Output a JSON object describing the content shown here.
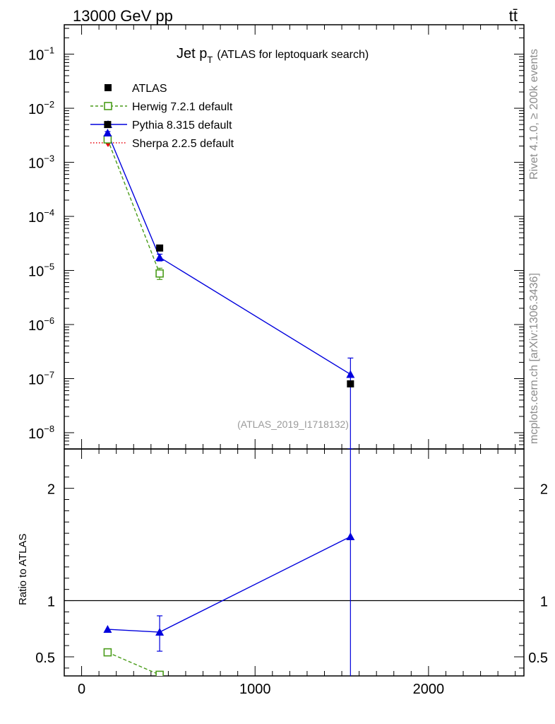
{
  "header": {
    "energy": "13000 GeV pp",
    "process": "tt̄"
  },
  "side_labels": {
    "rivet": "Rivet 4.1.0, ≥ 200k events",
    "source": "mcplots.cern.ch [arXiv:1306.3436]"
  },
  "chart_data": {
    "type": "line",
    "title": "Jet p",
    "title_sub": "T",
    "title_suffix": "(ATLAS for leptoquark search)",
    "analysis_id": "(ATLAS_2019_I1718132)",
    "xlabel": "",
    "ylabel_ratio": "Ratio to ATLAS",
    "xlim": [
      -100,
      2550
    ],
    "ylim_log": [
      5e-09,
      0.35
    ],
    "ratio_ylim": [
      0.33,
      2.35
    ],
    "x_ticks": [
      {
        "value": 0,
        "label": "0"
      },
      {
        "value": 1000,
        "label": "1000"
      },
      {
        "value": 2000,
        "label": "2000"
      }
    ],
    "y_ticks": [
      {
        "exp": -1,
        "label_base": "10",
        "label_exp": "−1"
      },
      {
        "exp": -2,
        "label_base": "10",
        "label_exp": "−2"
      },
      {
        "exp": -3,
        "label_base": "10",
        "label_exp": "−3"
      },
      {
        "exp": -4,
        "label_base": "10",
        "label_exp": "−4"
      },
      {
        "exp": -5,
        "label_base": "10",
        "label_exp": "−5"
      },
      {
        "exp": -6,
        "label_base": "10",
        "label_exp": "−6"
      },
      {
        "exp": -7,
        "label_base": "10",
        "label_exp": "−7"
      },
      {
        "exp": -8,
        "label_base": "10",
        "label_exp": "−8"
      }
    ],
    "ratio_ticks": [
      {
        "value": 0.5,
        "label": "0.5"
      },
      {
        "value": 1,
        "label": "1"
      },
      {
        "value": 2,
        "label": "2"
      }
    ],
    "series": [
      {
        "name": "ATLAS",
        "color": "#000000",
        "marker": "square",
        "line": "none",
        "x": [
          150,
          450,
          1550
        ],
        "y": [
          0.005,
          2.6e-05,
          8e-08
        ],
        "ratio": [
          1,
          1,
          1
        ]
      },
      {
        "name": "Herwig 7.2.1 default",
        "color": "#4a9c1a",
        "marker": "open-square",
        "line": "dashed",
        "x": [
          150,
          450
        ],
        "y": [
          0.00265,
          8.8e-06
        ],
        "yerr_low": [
          0.0025,
          6.8e-06
        ],
        "yerr_high": [
          0.0028,
          1.1e-05
        ],
        "ratio": [
          0.54,
          0.34
        ]
      },
      {
        "name": "Pythia 8.315 default",
        "color": "#0000dd",
        "marker": "triangle",
        "line": "solid",
        "x": [
          150,
          450,
          1550
        ],
        "y": [
          0.0035,
          1.75e-05,
          1.2e-07
        ],
        "yerr_low": [
          0.0033,
          1.5e-05,
          5e-09
        ],
        "yerr_high": [
          0.0037,
          2e-05,
          2.4e-07
        ],
        "ratio": [
          0.745,
          0.72,
          1.57
        ],
        "ratio_err_low": [
          0.745,
          0.55,
          0.33
        ],
        "ratio_err_high": [
          0.745,
          0.865,
          2.35
        ]
      },
      {
        "name": "Sherpa 2.2.5 default",
        "color": "#e8000a",
        "marker": "diamond",
        "line": "dotted",
        "x": [],
        "y": [],
        "ratio": []
      }
    ]
  }
}
